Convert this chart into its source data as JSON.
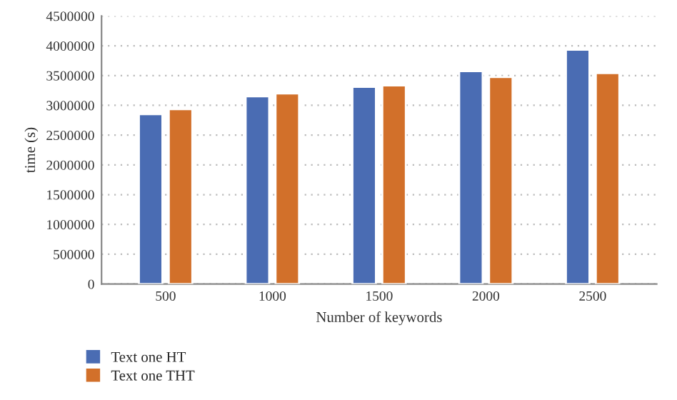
{
  "chart_data": {
    "type": "bar",
    "xlabel": "Number of keywords",
    "ylabel": "time (s)",
    "categories": [
      "500",
      "1000",
      "1500",
      "2000",
      "2500"
    ],
    "series": [
      {
        "name": "Text one HT",
        "color": "#4a6cb3",
        "values": [
          2850000,
          3150000,
          3310000,
          3575000,
          3935000
        ]
      },
      {
        "name": "Text one THT",
        "color": "#d2702a",
        "values": [
          2935000,
          3200000,
          3335000,
          3475000,
          3540000
        ]
      }
    ],
    "ylim": [
      0,
      4500000
    ],
    "yticks": [
      0,
      500000,
      1000000,
      1500000,
      2000000,
      2500000,
      3000000,
      3500000,
      4000000,
      4500000
    ],
    "grid": "y",
    "legend": "bottom left"
  }
}
